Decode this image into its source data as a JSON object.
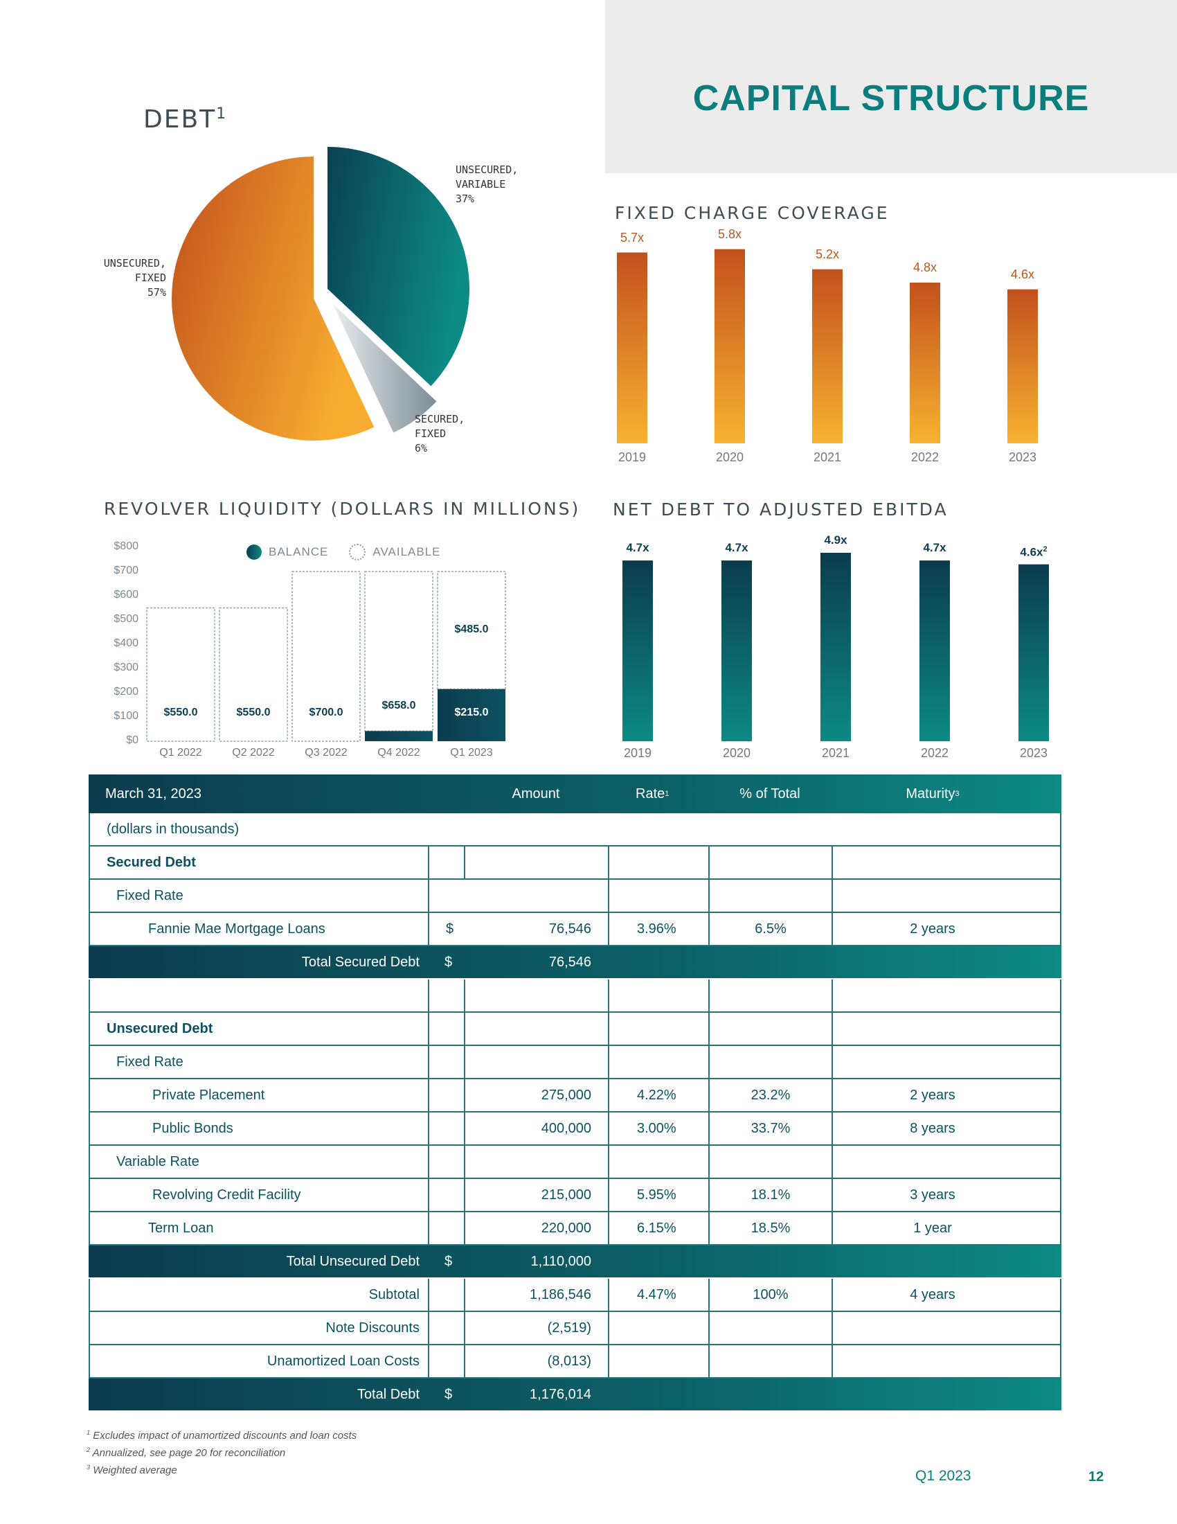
{
  "page": {
    "title": "CAPITAL STRUCTURE",
    "period": "Q1 2023",
    "page_number": "12"
  },
  "debt_pie": {
    "title": "DEBT",
    "title_sup": "1",
    "slices": [
      {
        "label_line1": "UNSECURED,",
        "label_line2": "VARIABLE",
        "percent": "37%",
        "value": 37
      },
      {
        "label_line1": "SECURED,",
        "label_line2": "FIXED",
        "percent": "6%",
        "value": 6
      },
      {
        "label_line1": "UNSECURED,",
        "label_line2": "FIXED",
        "percent": "57%",
        "value": 57
      }
    ]
  },
  "fixed_charge": {
    "title": "FIXED CHARGE COVERAGE",
    "bars": [
      {
        "year": "2019",
        "label": "5.7x",
        "value": 5.7
      },
      {
        "year": "2020",
        "label": "5.8x",
        "value": 5.8
      },
      {
        "year": "2021",
        "label": "5.2x",
        "value": 5.2
      },
      {
        "year": "2022",
        "label": "4.8x",
        "value": 4.8
      },
      {
        "year": "2023",
        "label": "4.6x",
        "value": 4.6
      }
    ]
  },
  "revolver": {
    "title": "REVOLVER LIQUIDITY (DOLLARS IN MILLIONS)",
    "legend": {
      "balance": "BALANCE",
      "available": "AVAILABLE"
    },
    "y_ticks": [
      "$800",
      "$700",
      "$600",
      "$500",
      "$400",
      "$300",
      "$200",
      "$100",
      "$0"
    ],
    "bars": [
      {
        "quarter": "Q1 2022",
        "balance": 0,
        "available": 550,
        "available_label": "$550.0",
        "balance_label": ""
      },
      {
        "quarter": "Q2 2022",
        "balance": 0,
        "available": 550,
        "available_label": "$550.0",
        "balance_label": ""
      },
      {
        "quarter": "Q3 2022",
        "balance": 0,
        "available": 700,
        "available_label": "$700.0",
        "balance_label": ""
      },
      {
        "quarter": "Q4 2022",
        "balance": 42,
        "available": 658,
        "available_label": "$658.0",
        "balance_label": ""
      },
      {
        "quarter": "Q1 2023",
        "balance": 215,
        "available": 485,
        "available_label": "$485.0",
        "balance_label": "$215.0"
      }
    ]
  },
  "net_debt": {
    "title": "NET DEBT TO ADJUSTED EBITDA",
    "bars": [
      {
        "year": "2019",
        "label": "4.7x",
        "sup": "",
        "value": 4.7
      },
      {
        "year": "2020",
        "label": "4.7x",
        "sup": "",
        "value": 4.7
      },
      {
        "year": "2021",
        "label": "4.9x",
        "sup": "",
        "value": 4.9
      },
      {
        "year": "2022",
        "label": "4.7x",
        "sup": "",
        "value": 4.7
      },
      {
        "year": "2023",
        "label": "4.6x",
        "sup": "2",
        "value": 4.6
      }
    ]
  },
  "table": {
    "header": {
      "date": "March 31, 2023",
      "amount": "Amount",
      "rate": "Rate",
      "rate_sup": "1",
      "pct": "% of Total",
      "maturity": "Maturity",
      "maturity_sup": "3"
    },
    "units": "(dollars in thousands)",
    "secured_heading": "Secured Debt",
    "fixed_rate": "Fixed Rate",
    "variable_rate": "Variable Rate",
    "fannie": {
      "name": "Fannie Mae Mortgage Loans",
      "dollar": "$",
      "amount": "76,546",
      "rate": "3.96%",
      "pct": "6.5%",
      "maturity": "2 years"
    },
    "total_secured": {
      "name": "Total Secured Debt",
      "dollar": "$",
      "amount": "76,546"
    },
    "unsecured_heading": "Unsecured Debt",
    "private": {
      "name": "Private Placement",
      "amount": "275,000",
      "rate": "4.22%",
      "pct": "23.2%",
      "maturity": "2 years"
    },
    "public": {
      "name": "Public Bonds",
      "amount": "400,000",
      "rate": "3.00%",
      "pct": "33.7%",
      "maturity": "8 years"
    },
    "revolving": {
      "name": "Revolving Credit Facility",
      "amount": "215,000",
      "rate": "5.95%",
      "pct": "18.1%",
      "maturity": "3 years"
    },
    "term": {
      "name": "Term Loan",
      "amount": "220,000",
      "rate": "6.15%",
      "pct": "18.5%",
      "maturity": "1 year"
    },
    "total_unsecured": {
      "name": "Total Unsecured Debt",
      "dollar": "$",
      "amount": "1,110,000"
    },
    "subtotal": {
      "name": "Subtotal",
      "amount": "1,186,546",
      "rate": "4.47%",
      "pct": "100%",
      "maturity": "4 years"
    },
    "note_discounts": {
      "name": "Note Discounts",
      "amount": "(2,519)"
    },
    "loan_costs": {
      "name": "Unamortized Loan Costs",
      "amount": "(8,013)"
    },
    "total_debt": {
      "name": "Total Debt",
      "dollar": "$",
      "amount": "1,176,014"
    }
  },
  "footnotes": [
    {
      "num": "1",
      "text": "Excludes impact of unamortized discounts and loan costs"
    },
    {
      "num": "2",
      "text": "Annualized, see page 20 for reconciliation"
    },
    {
      "num": "3",
      "text": "Weighted average"
    }
  ]
}
